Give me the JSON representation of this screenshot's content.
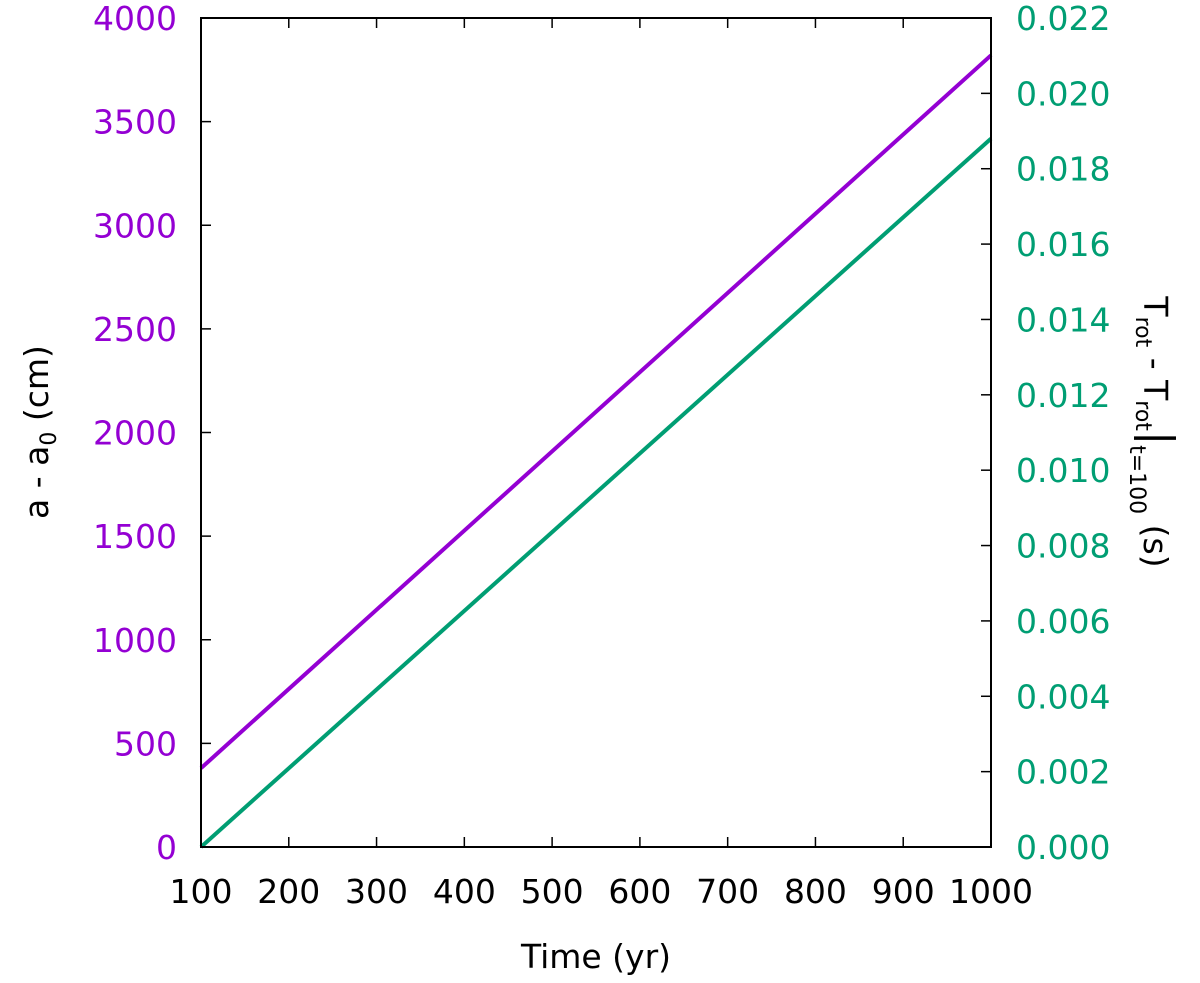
{
  "chart_data": {
    "type": "line",
    "xlabel": "Time (yr)",
    "ylabel_left": {
      "main": "a - a",
      "sub": "0",
      "tail": " (cm)"
    },
    "ylabel_right": {
      "p1": "T",
      "p1_sub": "rot",
      "p2": " - T",
      "p2_sub": "rot",
      "bar": "|",
      "p3_sub": "t=100",
      "p4": " (s)"
    },
    "xlim": [
      100,
      1000
    ],
    "ylim_left": [
      0,
      4000
    ],
    "ylim_right": [
      0.0,
      0.022
    ],
    "x_ticks": [
      "100",
      "200",
      "300",
      "400",
      "500",
      "600",
      "700",
      "800",
      "900",
      "1000"
    ],
    "y_left_ticks": [
      "0",
      "500",
      "1000",
      "1500",
      "2000",
      "2500",
      "3000",
      "3500",
      "4000"
    ],
    "y_right_ticks": [
      "0.000",
      "0.002",
      "0.004",
      "0.006",
      "0.008",
      "0.010",
      "0.012",
      "0.014",
      "0.016",
      "0.018",
      "0.020",
      "0.022"
    ],
    "grid": false,
    "legend": "none",
    "series": [
      {
        "axis": "left",
        "color": "#9400d3",
        "x": [
          100,
          1000
        ],
        "y": [
          380,
          3820
        ]
      },
      {
        "axis": "right",
        "color": "#009e73",
        "x": [
          100,
          1000
        ],
        "y": [
          0.0,
          0.0188
        ]
      }
    ]
  }
}
